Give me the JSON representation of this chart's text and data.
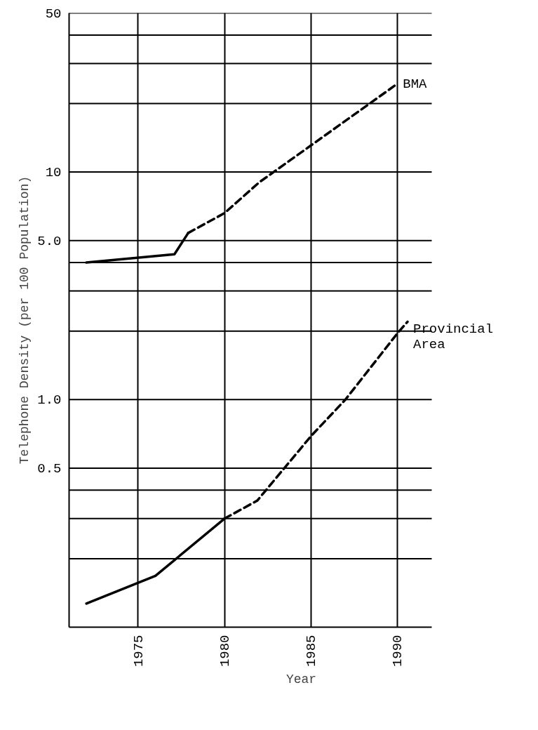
{
  "chart_data": {
    "type": "line",
    "xlabel": "Year",
    "ylabel": "Telephone Density (per 100 Population)",
    "log": "y",
    "grid": true,
    "xlim": [
      1971,
      1992
    ],
    "xticks": [
      1975,
      1980,
      1985,
      1990
    ],
    "ylim": [
      0.1,
      50
    ],
    "yticks": [
      {
        "value": 0.2,
        "label": null
      },
      {
        "value": 0.3,
        "label": null
      },
      {
        "value": 0.4,
        "label": null
      },
      {
        "value": 0.5,
        "label": "0.5"
      },
      {
        "value": 1,
        "label": "1.0"
      },
      {
        "value": 2,
        "label": null
      },
      {
        "value": 3,
        "label": null
      },
      {
        "value": 4,
        "label": null
      },
      {
        "value": 5,
        "label": "5.0"
      },
      {
        "value": 10,
        "label": "10"
      },
      {
        "value": 20,
        "label": null
      },
      {
        "value": 30,
        "label": null
      },
      {
        "value": 40,
        "label": null
      },
      {
        "value": 50,
        "label": "50"
      }
    ],
    "series": [
      {
        "color": "#000000",
        "line_style": "solid",
        "x": [
          1972,
          1977.1,
          1977.9
        ],
        "values": [
          4.0,
          4.35,
          5.4
        ]
      },
      {
        "name": "BMA",
        "color": "#000000",
        "line_style": "dashed",
        "x": [
          1977.9,
          1980,
          1982,
          1990
        ],
        "values": [
          5.4,
          6.6,
          9.0,
          24.4
        ]
      },
      {
        "color": "#000000",
        "line_style": "solid",
        "x": [
          1972,
          1976,
          1980
        ],
        "values": [
          0.127,
          0.168,
          0.3
        ]
      },
      {
        "name": "Provincial Area",
        "color": "#000000",
        "line_style": "dashed",
        "x": [
          1980,
          1981.9,
          1985,
          1987,
          1990,
          1990.6
        ],
        "values": [
          0.3,
          0.36,
          0.69,
          1.0,
          1.95,
          2.2
        ]
      }
    ]
  }
}
